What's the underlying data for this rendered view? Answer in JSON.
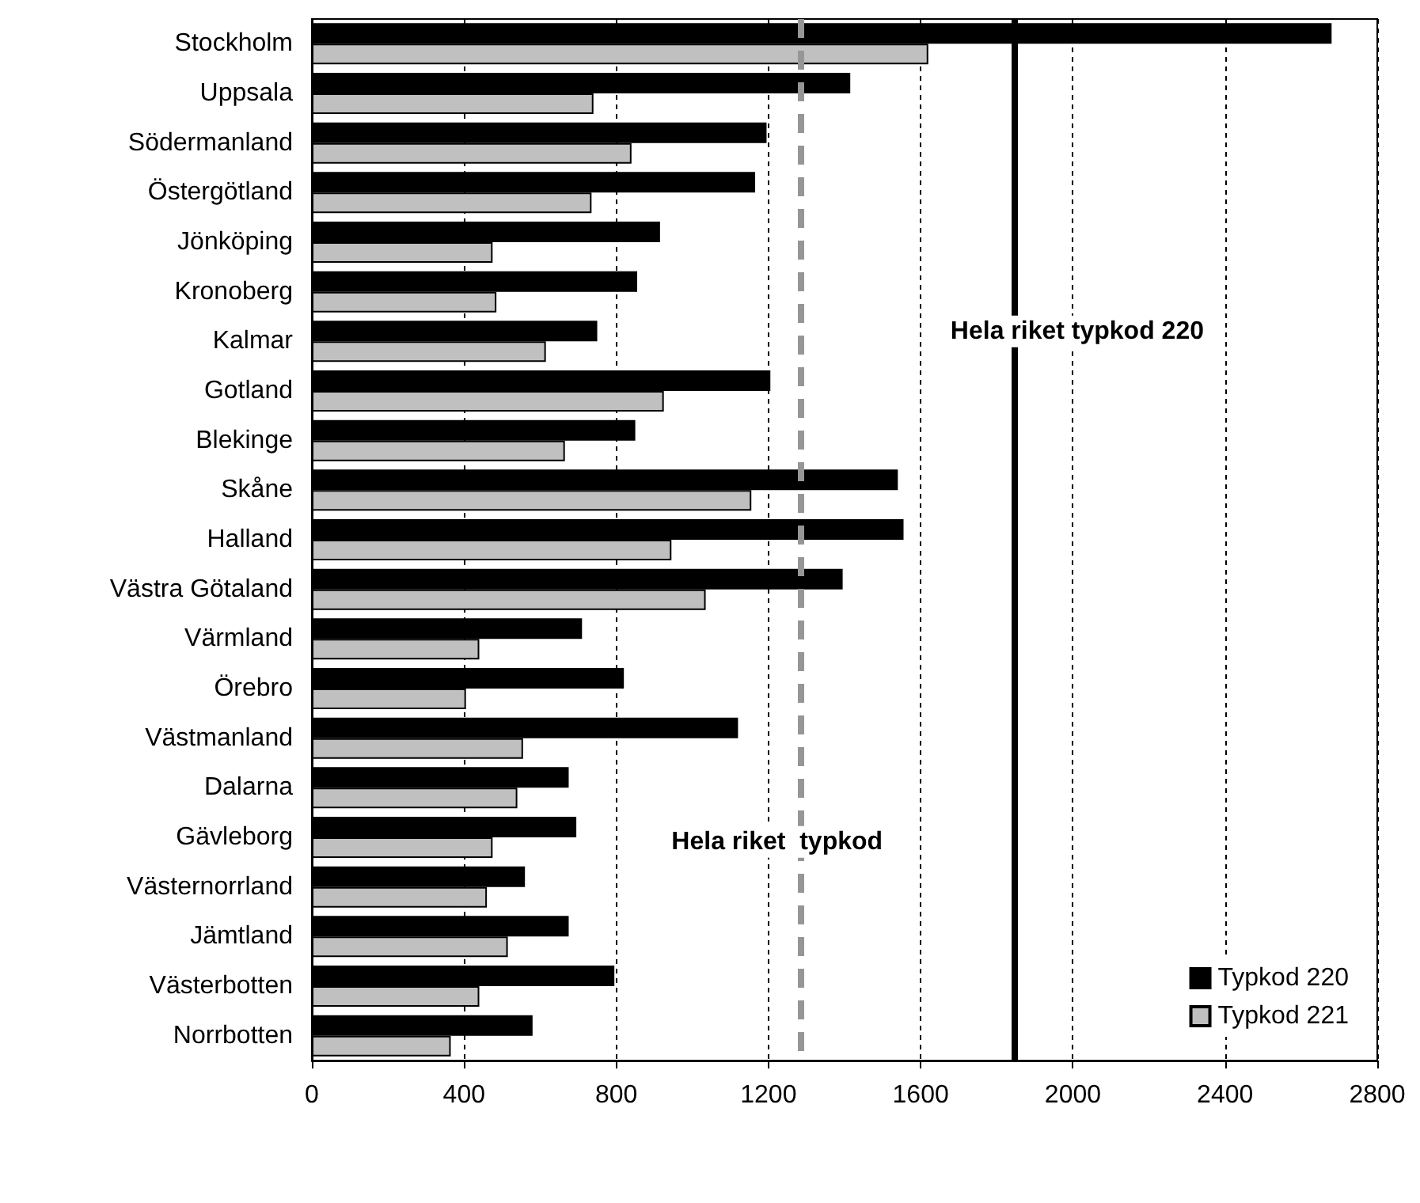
{
  "chart_data": {
    "type": "bar",
    "orientation": "horizontal",
    "categories": [
      "Stockholm",
      "Uppsala",
      "Södermanland",
      "Östergötland",
      "Jönköping",
      "Kronoberg",
      "Kalmar",
      "Gotland",
      "Blekinge",
      "Skåne",
      "Halland",
      "Västra Götaland",
      "Värmland",
      "Örebro",
      "Västmanland",
      "Dalarna",
      "Gävleborg",
      "Västernorrland",
      "Jämtland",
      "Västerbotten",
      "Norrbotten"
    ],
    "series": [
      {
        "name": "Typkod 220",
        "color": "#000000",
        "values": [
          2680,
          1415,
          1195,
          1165,
          915,
          855,
          750,
          1205,
          850,
          1540,
          1555,
          1395,
          710,
          820,
          1120,
          675,
          695,
          560,
          675,
          795,
          580
        ]
      },
      {
        "name": "Typkod 221",
        "color": "#c0c0c0",
        "values": [
          1620,
          740,
          840,
          735,
          475,
          485,
          615,
          925,
          665,
          1155,
          945,
          1035,
          440,
          405,
          555,
          540,
          475,
          460,
          515,
          440,
          365
        ]
      }
    ],
    "xlim": [
      0,
      2800
    ],
    "xticks": [
      0,
      400,
      800,
      1200,
      1600,
      2000,
      2400,
      2800
    ],
    "grid": "x",
    "legend": "bottom right",
    "ref_lines": [
      {
        "axis": "x",
        "value": 1285,
        "label": "Hela riket  typkod",
        "color": "#969696",
        "line_style": "dashed"
      },
      {
        "axis": "x",
        "value": 1845,
        "label": "Hela riket typkod 220",
        "color": "#000000",
        "line_style": "solid"
      }
    ]
  }
}
